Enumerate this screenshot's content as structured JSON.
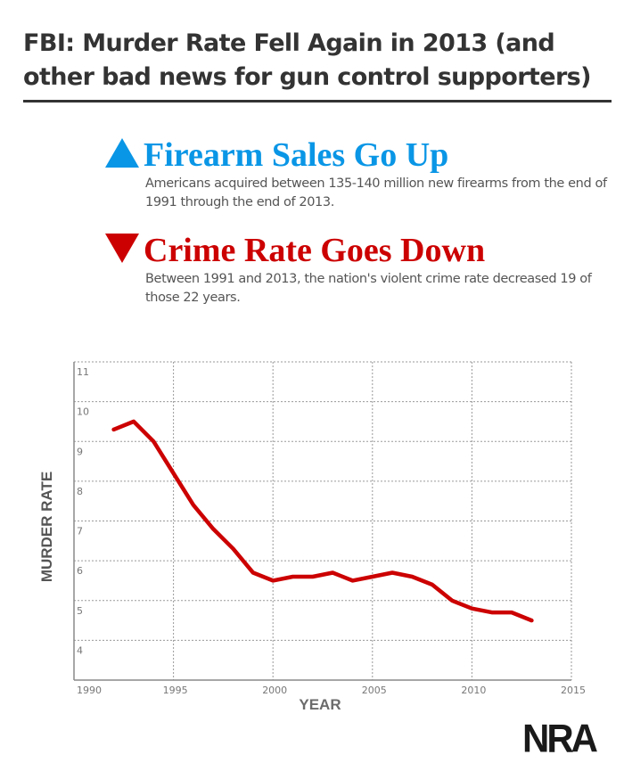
{
  "headline": {
    "text": "FBI: Murder Rate Fell Again in 2013 (and other bad news for gun control supporters)"
  },
  "callouts": [
    {
      "icon": "triangle-up-icon",
      "color": "#0a96e6",
      "title": "Firearm Sales Go Up",
      "body": "Americans acquired between 135-140 million new firearms from the end of 1991 through the end of 2013."
    },
    {
      "icon": "triangle-down-icon",
      "color": "#cc0000",
      "title": "Crime Rate Goes Down",
      "body": "Between 1991 and 2013, the nation's violent crime rate decreased 19 of those 22 years."
    }
  ],
  "chart_data": {
    "type": "line",
    "title": "",
    "xlabel": "YEAR",
    "ylabel": "MURDER RATE",
    "xlim": [
      1990,
      2015
    ],
    "ylim": [
      3,
      11
    ],
    "x_ticks": [
      1990,
      1995,
      2000,
      2005,
      2010,
      2015
    ],
    "y_ticks": [
      4,
      5,
      6,
      7,
      8,
      9,
      10,
      11
    ],
    "grid": true,
    "grid_style": "dotted",
    "legend": "none",
    "series": [
      {
        "name": "Murder Rate",
        "color": "#cc0000",
        "x": [
          1992,
          1993,
          1994,
          1995,
          1996,
          1997,
          1998,
          1999,
          2000,
          2001,
          2002,
          2003,
          2004,
          2005,
          2006,
          2007,
          2008,
          2009,
          2010,
          2011,
          2012,
          2013
        ],
        "values": [
          9.3,
          9.5,
          9.0,
          8.2,
          7.4,
          6.8,
          6.3,
          5.7,
          5.5,
          5.6,
          5.6,
          5.7,
          5.5,
          5.6,
          5.7,
          5.6,
          5.4,
          5.0,
          4.8,
          4.7,
          4.7,
          4.5
        ]
      }
    ]
  },
  "logo": {
    "text": "NRA"
  }
}
